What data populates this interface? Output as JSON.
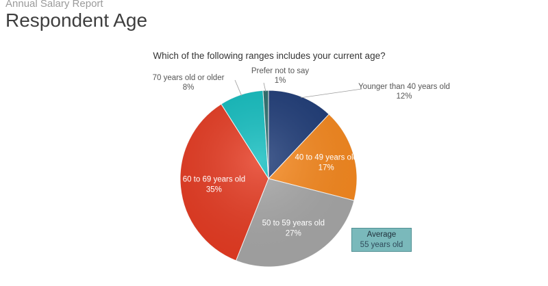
{
  "header": {
    "report_label": "Annual Salary Report",
    "page_title": "Respondent Age"
  },
  "callout": {
    "title": "Average",
    "value": "55 years old",
    "color": "#7ab9bb"
  },
  "chart_data": {
    "type": "pie",
    "title": "Which of the following ranges includes your current age?",
    "start": "top, clockwise",
    "slices": [
      {
        "label": "Younger than 40 years old",
        "percent_label": "12%",
        "value": 12,
        "color": "#1f3c78",
        "label_position": "outside"
      },
      {
        "label": "40 to 49 years old",
        "percent_label": "17%",
        "value": 17,
        "color": "#f7891f",
        "label_position": "inside"
      },
      {
        "label": "50 to 59 years old",
        "percent_label": "27%",
        "value": 27,
        "color": "#a7a7a7",
        "label_position": "inside"
      },
      {
        "label": "60 to 69 years old",
        "percent_label": "35%",
        "value": 35,
        "color": "#e63b22",
        "label_position": "inside"
      },
      {
        "label": "70 years old or older",
        "percent_label": "8%",
        "value": 8,
        "color": "#13bec0",
        "label_position": "outside"
      },
      {
        "label": "Prefer not to say",
        "percent_label": "1%",
        "value": 1,
        "color": "#2c6e6e",
        "label_position": "outside"
      }
    ]
  }
}
